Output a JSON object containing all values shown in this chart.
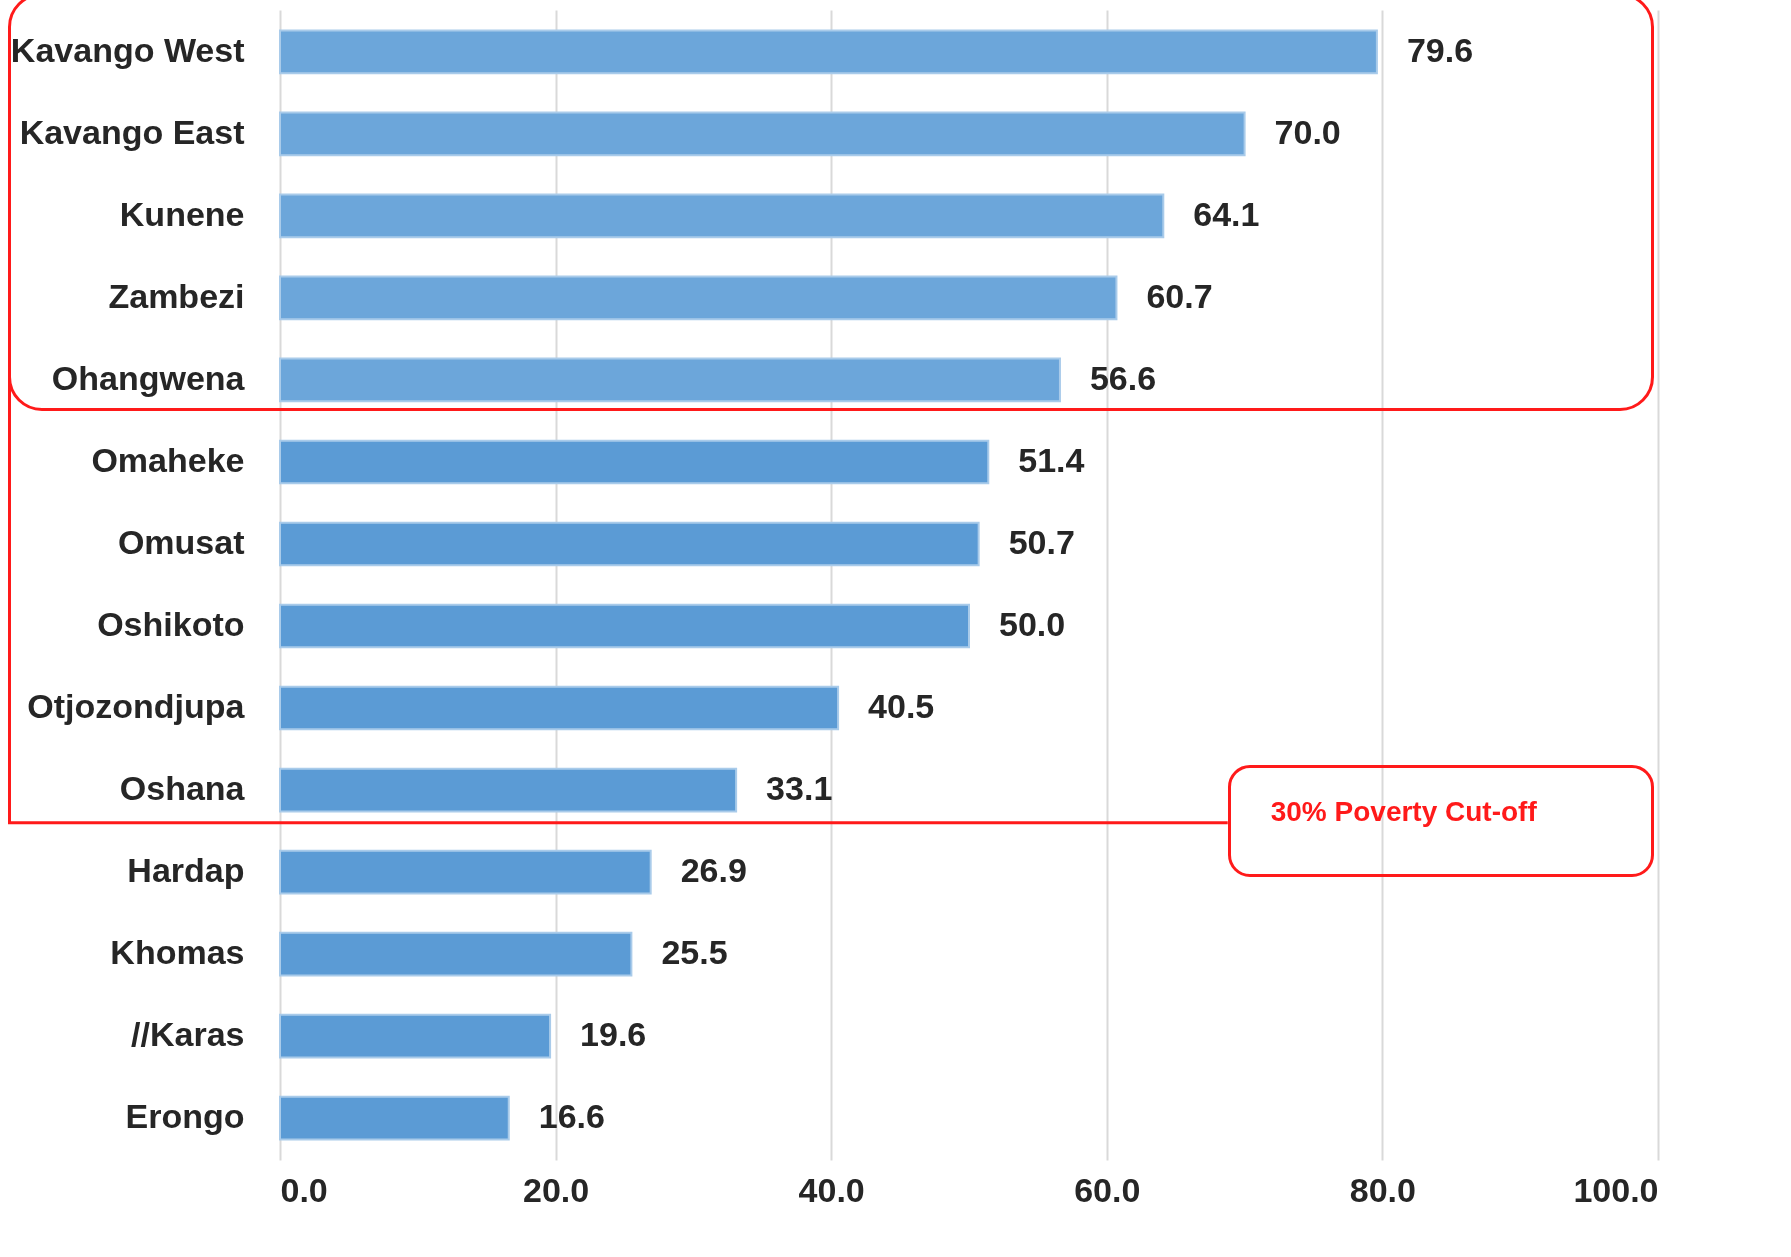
{
  "chart_data": {
    "type": "bar",
    "orientation": "horizontal",
    "categories": [
      "Kavango West",
      "Kavango East",
      "Kunene",
      "Zambezi",
      "Ohangwena",
      "Omaheke",
      "Omusat",
      "Oshikoto",
      "Otjozondjupa",
      "Oshana",
      "Hardap",
      "Khomas",
      "//Karas",
      "Erongo"
    ],
    "values": [
      79.6,
      70.0,
      64.1,
      60.7,
      56.6,
      51.4,
      50.7,
      50.0,
      40.5,
      33.1,
      26.9,
      25.5,
      19.6,
      16.6
    ],
    "colors": [
      "#6ca6da",
      "#6ca6da",
      "#6ca6da",
      "#6ca6da",
      "#6ca6da",
      "#5b9bd5",
      "#5b9bd5",
      "#5b9bd5",
      "#5b9bd5",
      "#5b9bd5",
      "#5b9bd5",
      "#5b9bd5",
      "#5b9bd5",
      "#5b9bd5"
    ],
    "xlim": [
      0,
      100
    ],
    "xticks": [
      {
        "value": 0,
        "label": "0.0"
      },
      {
        "value": 20,
        "label": "20.0"
      },
      {
        "value": 40,
        "label": "40.0"
      },
      {
        "value": 60,
        "label": "60.0"
      },
      {
        "value": 80,
        "label": "80.0"
      },
      {
        "value": 100,
        "label": "100.0"
      }
    ],
    "grid": "x",
    "value_labels": [
      "79.6",
      "70.0",
      "64.1",
      "60.7",
      "56.6",
      "51.4",
      "50.7",
      "50.0",
      "40.5",
      "33.1",
      "26.9",
      "25.5",
      "19.6",
      "16.6"
    ],
    "data_labels": true,
    "annotations": [
      "30% Poverty Cut-off"
    ]
  }
}
